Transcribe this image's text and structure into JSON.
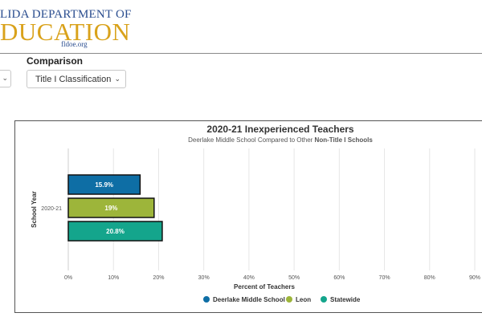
{
  "logo": {
    "line1": "LIDA DEPARTMENT OF",
    "line2": "DUCATION",
    "line3": "fldoe.org"
  },
  "controls": {
    "comparison_label": "Comparison",
    "comparison_value": "Title I Classification"
  },
  "icons": {
    "chevron": "chevron-down-icon",
    "legend_marker": "circle-icon"
  },
  "chart_data": {
    "type": "bar",
    "orientation": "horizontal",
    "title": "2020-21 Inexperienced Teachers",
    "subtitle_prefix": "Deerlake Middle School Compared to Other ",
    "subtitle_emphasis": "Non-Title I Schools",
    "xlabel": "Percent of Teachers",
    "ylabel": "School Year",
    "categories": [
      "2020-21"
    ],
    "xlim": [
      0,
      90
    ],
    "xticks": [
      0,
      10,
      20,
      30,
      40,
      50,
      60,
      70,
      80,
      90
    ],
    "tick_suffix": "%",
    "grid": true,
    "legend_position": "bottom",
    "series": [
      {
        "name": "Deerlake Middle School",
        "values": [
          15.9
        ],
        "label": "15.9%",
        "color": "#0e6ea5"
      },
      {
        "name": "Leon",
        "values": [
          19
        ],
        "label": "19%",
        "color": "#9db53a"
      },
      {
        "name": "Statewide",
        "values": [
          20.8
        ],
        "label": "20.8%",
        "color": "#14a58c"
      }
    ]
  }
}
